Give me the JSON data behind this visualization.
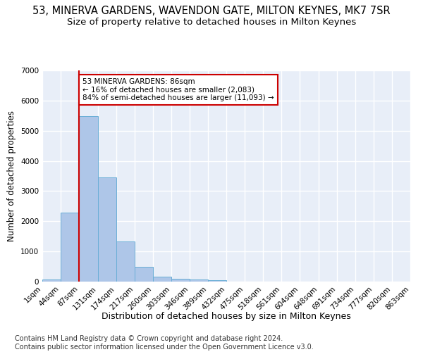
{
  "title": "53, MINERVA GARDENS, WAVENDON GATE, MILTON KEYNES, MK7 7SR",
  "subtitle": "Size of property relative to detached houses in Milton Keynes",
  "xlabel": "Distribution of detached houses by size in Milton Keynes",
  "ylabel": "Number of detached properties",
  "bar_color": "#aec6e8",
  "bar_edge_color": "#6aaed6",
  "bg_color": "#e8eef8",
  "grid_color": "#ffffff",
  "annotation_box_color": "#cc0000",
  "annotation_text": "53 MINERVA GARDENS: 86sqm\n← 16% of detached houses are smaller (2,083)\n84% of semi-detached houses are larger (11,093) →",
  "property_line_x": 87,
  "property_line_color": "#cc0000",
  "bin_edges": [
    1,
    44,
    87,
    131,
    174,
    217,
    260,
    303,
    346,
    389,
    432,
    475,
    518,
    561,
    604,
    648,
    691,
    734,
    777,
    820,
    863
  ],
  "bar_heights": [
    80,
    2280,
    5480,
    3450,
    1320,
    480,
    160,
    100,
    80,
    50,
    10,
    5,
    5,
    3,
    2,
    1,
    1,
    1,
    1,
    1
  ],
  "ylim": [
    0,
    7000
  ],
  "yticks": [
    0,
    1000,
    2000,
    3000,
    4000,
    5000,
    6000,
    7000
  ],
  "footer": "Contains HM Land Registry data © Crown copyright and database right 2024.\nContains public sector information licensed under the Open Government Licence v3.0.",
  "footer_fontsize": 7,
  "title_fontsize": 10.5,
  "subtitle_fontsize": 9.5,
  "xlabel_fontsize": 9,
  "ylabel_fontsize": 8.5,
  "tick_fontsize": 7.5,
  "annotation_fontsize": 7.5
}
